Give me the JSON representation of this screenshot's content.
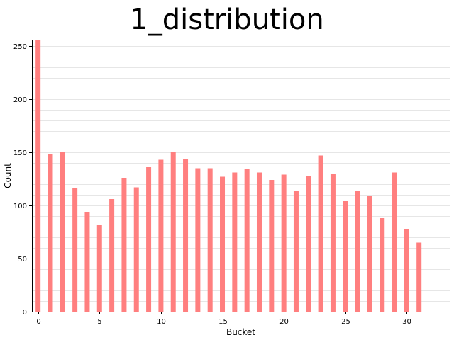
{
  "chart_data": {
    "type": "bar",
    "title": "1_distribution",
    "xlabel": "Bucket",
    "ylabel": "Count",
    "x": [
      0,
      1,
      2,
      3,
      4,
      5,
      6,
      7,
      8,
      9,
      10,
      11,
      12,
      13,
      14,
      15,
      16,
      17,
      18,
      19,
      20,
      21,
      22,
      23,
      24,
      25,
      26,
      27,
      28,
      29,
      30,
      31
    ],
    "values": [
      256,
      148,
      150,
      116,
      94,
      82,
      106,
      126,
      117,
      136,
      143,
      150,
      144,
      135,
      135,
      127,
      131,
      134,
      131,
      124,
      129,
      114,
      128,
      147,
      130,
      104,
      114,
      109,
      88,
      131,
      78,
      65
    ],
    "xlim": [
      -0.5,
      33.5
    ],
    "ylim": [
      0,
      256
    ],
    "xticks": [
      0,
      5,
      10,
      15,
      20,
      25,
      30
    ],
    "yticks": [
      0,
      50,
      100,
      150,
      200,
      250
    ],
    "grid": "horizontal",
    "bar_color": "#ff7f7f",
    "grid_color": "#e6e6e6"
  }
}
